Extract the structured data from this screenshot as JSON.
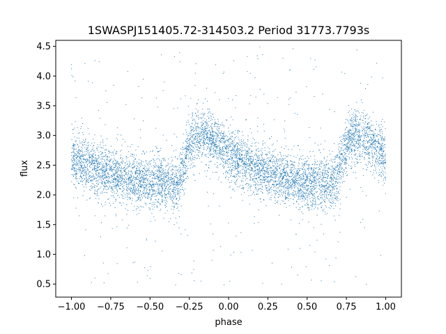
{
  "chart_data": {
    "type": "scatter",
    "title": "1SWASPJ151405.72-314503.2 Period 31773.7793s",
    "xlabel": "phase",
    "ylabel": "flux",
    "xlim": [
      -1.1,
      1.1
    ],
    "ylim": [
      0.28,
      4.6
    ],
    "grid": false,
    "marker_color": "#1f77b4",
    "x_ticks": [
      {
        "value": -1.0,
        "label": "−1.00"
      },
      {
        "value": -0.75,
        "label": "−0.75"
      },
      {
        "value": -0.5,
        "label": "−0.50"
      },
      {
        "value": -0.25,
        "label": "−0.25"
      },
      {
        "value": 0.0,
        "label": "0.00"
      },
      {
        "value": 0.25,
        "label": "0.25"
      },
      {
        "value": 0.5,
        "label": "0.50"
      },
      {
        "value": 0.75,
        "label": "0.75"
      },
      {
        "value": 1.0,
        "label": "1.00"
      }
    ],
    "y_ticks": [
      {
        "value": 0.5,
        "label": "0.5"
      },
      {
        "value": 1.0,
        "label": "1.0"
      },
      {
        "value": 1.5,
        "label": "1.5"
      },
      {
        "value": 2.0,
        "label": "2.0"
      },
      {
        "value": 2.5,
        "label": "2.5"
      },
      {
        "value": 3.0,
        "label": "3.0"
      },
      {
        "value": 3.5,
        "label": "3.5"
      },
      {
        "value": 4.0,
        "label": "4.0"
      },
      {
        "value": 4.5,
        "label": "4.5"
      }
    ],
    "light_curve": {
      "phase": [
        -1.0,
        -0.9,
        -0.8,
        -0.7,
        -0.6,
        -0.5,
        -0.4,
        -0.32,
        -0.3,
        -0.25,
        -0.2,
        -0.15,
        -0.1,
        0.0,
        0.1,
        0.2,
        0.3,
        0.4,
        0.5,
        0.6,
        0.68,
        0.7,
        0.75,
        0.8,
        0.85,
        0.9,
        1.0
      ],
      "flux": [
        2.6,
        2.5,
        2.4,
        2.32,
        2.26,
        2.2,
        2.18,
        2.2,
        2.35,
        2.85,
        3.0,
        2.98,
        2.92,
        2.7,
        2.55,
        2.42,
        2.32,
        2.24,
        2.2,
        2.18,
        2.22,
        2.4,
        2.85,
        3.0,
        2.98,
        2.92,
        2.65
      ],
      "scatter_sigma": 0.22
    }
  }
}
